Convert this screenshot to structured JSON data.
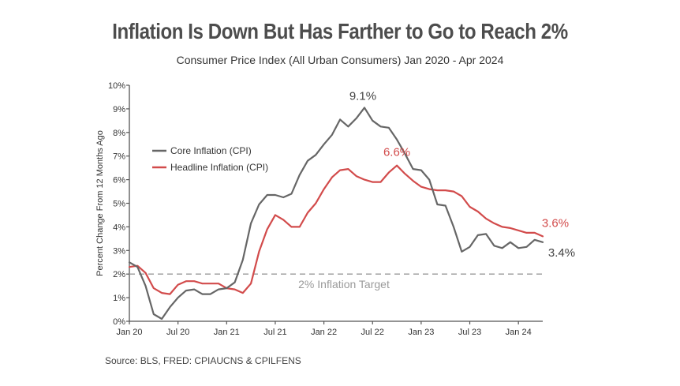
{
  "chart_data": {
    "type": "line",
    "title": "Inflation Is Down But Has Farther to Go to Reach 2%",
    "subtitle": "Consumer Price Index (All Urban Consumers) Jan 2020 - Apr 2024",
    "ylabel": "Percent Change From 12 Months Ago",
    "xlabel": "",
    "ylim": [
      0,
      10
    ],
    "yticks": [
      "0%",
      "1%",
      "2%",
      "3%",
      "4%",
      "5%",
      "6%",
      "7%",
      "8%",
      "9%",
      "10%"
    ],
    "xticks": [
      {
        "label": "Jan 20",
        "index": 0
      },
      {
        "label": "Jul 20",
        "index": 6
      },
      {
        "label": "Jan 21",
        "index": 12
      },
      {
        "label": "Jul 21",
        "index": 18
      },
      {
        "label": "Jan 22",
        "index": 24
      },
      {
        "label": "Jul 22",
        "index": 30
      },
      {
        "label": "Jan 23",
        "index": 36
      },
      {
        "label": "Jul 23",
        "index": 42
      },
      {
        "label": "Jan 24",
        "index": 48
      }
    ],
    "series": [
      {
        "name": "Core Inflation (CPI)",
        "color": "#666666",
        "values": [
          2.5,
          2.3,
          1.5,
          0.3,
          0.1,
          0.6,
          1.0,
          1.3,
          1.35,
          1.15,
          1.15,
          1.35,
          1.4,
          1.65,
          2.6,
          4.15,
          4.95,
          5.35,
          5.35,
          5.25,
          5.4,
          6.2,
          6.8,
          7.05,
          7.5,
          7.9,
          8.55,
          8.25,
          8.6,
          9.05,
          8.5,
          8.25,
          8.2,
          7.7,
          7.1,
          6.45,
          6.4,
          6.0,
          4.95,
          4.9,
          4.0,
          2.95,
          3.15,
          3.65,
          3.7,
          3.2,
          3.1,
          3.35,
          3.1,
          3.15,
          3.45,
          3.35
        ]
      },
      {
        "name": "Headline Inflation (CPI)",
        "color": "#d24b4b",
        "values": [
          2.3,
          2.35,
          2.05,
          1.4,
          1.2,
          1.15,
          1.55,
          1.7,
          1.7,
          1.6,
          1.6,
          1.6,
          1.4,
          1.35,
          1.2,
          1.6,
          2.95,
          3.9,
          4.5,
          4.3,
          4.0,
          4.0,
          4.6,
          5.0,
          5.6,
          6.1,
          6.4,
          6.45,
          6.15,
          6.0,
          5.9,
          5.9,
          6.3,
          6.6,
          6.25,
          5.95,
          5.7,
          5.6,
          5.55,
          5.55,
          5.5,
          5.3,
          4.85,
          4.65,
          4.35,
          4.15,
          4.0,
          3.95,
          3.85,
          3.75,
          3.75,
          3.6
        ]
      }
    ],
    "annotations": {
      "core_peak": "9.1%",
      "headline_peak": "6.6%",
      "headline_last": "3.6%",
      "core_last": "3.4%",
      "target_label": "2% Inflation Target",
      "target_value": 2
    },
    "legend_position": "left-middle"
  },
  "source": "Source: BLS, FRED: CPIAUCNS & CPILFENS",
  "colors": {
    "title": "#4d4d4d",
    "axis": "#555555",
    "core": "#666666",
    "headline": "#d24b4b",
    "target": "#9a9a9a"
  }
}
